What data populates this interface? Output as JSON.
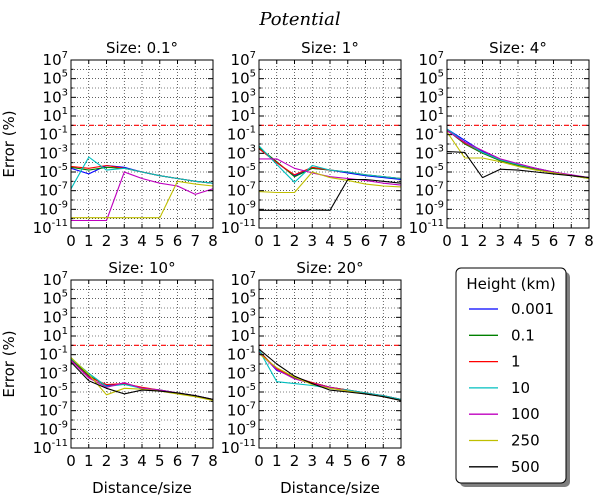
{
  "figure": {
    "title": "Potential"
  },
  "chart_data": [
    {
      "type": "line",
      "title": "Size: 0.1°",
      "xlabel": "",
      "ylabel": "Error (%)",
      "xlim": [
        0,
        8
      ],
      "ylim_exp": [
        -11,
        7
      ],
      "yscale": "log",
      "grid": true,
      "reference_line": {
        "y": 1,
        "style": "dashed",
        "color": "#ff0000"
      },
      "x": [
        0,
        1,
        2,
        3,
        4,
        5,
        6,
        7,
        8
      ],
      "series": [
        {
          "name": "0.001",
          "color": "#0000ff",
          "values_log10": [
            -4.6,
            -5.2,
            -4.3,
            -4.5,
            -5.0,
            -5.4,
            -5.7,
            -6.0,
            -6.2
          ]
        },
        {
          "name": "0.1",
          "color": "#008000",
          "values_log10": [
            -4.5,
            -4.8,
            -4.5,
            -4.6,
            -5.0,
            -5.4,
            -5.7,
            -6.0,
            -6.2
          ]
        },
        {
          "name": "1",
          "color": "#ff0000",
          "values_log10": [
            -4.4,
            -4.6,
            -4.3,
            -4.6,
            -5.0,
            -5.4,
            -5.7,
            -6.0,
            -6.2
          ]
        },
        {
          "name": "10",
          "color": "#00bfbf",
          "values_log10": [
            -6.8,
            -3.4,
            -4.8,
            -4.6,
            -5.0,
            -5.4,
            -5.7,
            -6.0,
            -6.2
          ]
        },
        {
          "name": "100",
          "color": "#bf00bf",
          "values_log10": [
            -10.2,
            -10.2,
            -10.2,
            -5.0,
            -5.7,
            -6.2,
            -6.5,
            -7.4,
            -6.8
          ]
        },
        {
          "name": "250",
          "color": "#bfbf00",
          "values_log10": [
            -9.9,
            -9.9,
            -9.9,
            -9.9,
            -9.9,
            -9.9,
            -6.0,
            -6.3,
            -6.5
          ]
        },
        {
          "name": "500",
          "color": "#000000",
          "values_log10": [
            null,
            null,
            null,
            null,
            null,
            null,
            null,
            null,
            null
          ]
        }
      ]
    },
    {
      "type": "line",
      "title": "Size: 1°",
      "xlabel": "",
      "ylabel": "",
      "xlim": [
        0,
        8
      ],
      "ylim_exp": [
        -11,
        7
      ],
      "yscale": "log",
      "grid": true,
      "reference_line": {
        "y": 1,
        "style": "dashed",
        "color": "#ff0000"
      },
      "x": [
        0,
        1,
        2,
        3,
        4,
        5,
        6,
        7,
        8
      ],
      "series": [
        {
          "name": "0.001",
          "color": "#0000ff",
          "values_log10": [
            -2.5,
            -4.0,
            -5.4,
            -4.6,
            -4.8,
            -5.1,
            -5.4,
            -5.6,
            -5.8
          ]
        },
        {
          "name": "0.1",
          "color": "#008000",
          "values_log10": [
            -2.4,
            -3.9,
            -5.5,
            -4.6,
            -4.8,
            -5.0,
            -5.3,
            -5.5,
            -5.7
          ]
        },
        {
          "name": "1",
          "color": "#ff0000",
          "values_log10": [
            -2.5,
            -4.0,
            -5.3,
            -4.5,
            -4.8,
            -5.0,
            -5.3,
            -5.5,
            -5.7
          ]
        },
        {
          "name": "10",
          "color": "#00bfbf",
          "values_log10": [
            -2.2,
            -4.2,
            -6.1,
            -4.3,
            -4.8,
            -5.0,
            -5.3,
            -5.5,
            -5.7
          ]
        },
        {
          "name": "100",
          "color": "#bf00bf",
          "values_log10": [
            -3.6,
            -3.6,
            -4.6,
            -5.1,
            -5.5,
            -5.7,
            -5.9,
            -6.2,
            -6.4
          ]
        },
        {
          "name": "250",
          "color": "#bfbf00",
          "values_log10": [
            -7.1,
            -7.2,
            -7.2,
            -5.0,
            -5.6,
            -5.9,
            -6.3,
            -6.5,
            -6.6
          ]
        },
        {
          "name": "500",
          "color": "#000000",
          "values_log10": [
            -9.1,
            -9.1,
            -9.1,
            -9.1,
            -9.1,
            -5.8,
            -5.8,
            -6.0,
            -6.2
          ]
        }
      ]
    },
    {
      "type": "line",
      "title": "Size: 4°",
      "xlabel": "",
      "ylabel": "",
      "xlim": [
        0,
        8
      ],
      "ylim_exp": [
        -11,
        7
      ],
      "yscale": "log",
      "grid": true,
      "reference_line": {
        "y": 1,
        "style": "dashed",
        "color": "#ff0000"
      },
      "x": [
        0,
        1,
        2,
        3,
        4,
        5,
        6,
        7,
        8
      ],
      "series": [
        {
          "name": "0.001",
          "color": "#0000ff",
          "values_log10": [
            -0.4,
            -1.6,
            -2.8,
            -3.7,
            -4.2,
            -4.6,
            -5.0,
            -5.4,
            -5.6
          ]
        },
        {
          "name": "0.1",
          "color": "#008000",
          "values_log10": [
            -0.5,
            -2.0,
            -3.0,
            -3.8,
            -4.3,
            -4.7,
            -5.1,
            -5.4,
            -5.7
          ]
        },
        {
          "name": "1",
          "color": "#ff0000",
          "values_log10": [
            -0.5,
            -1.9,
            -2.9,
            -3.7,
            -4.2,
            -4.6,
            -5.0,
            -5.4,
            -5.6
          ]
        },
        {
          "name": "10",
          "color": "#00bfbf",
          "values_log10": [
            -0.4,
            -1.8,
            -2.9,
            -3.7,
            -4.2,
            -4.6,
            -5.0,
            -5.4,
            -5.6
          ]
        },
        {
          "name": "100",
          "color": "#bf00bf",
          "values_log10": [
            -0.6,
            -1.8,
            -2.7,
            -3.6,
            -4.1,
            -4.6,
            -5.0,
            -5.3,
            -5.6
          ]
        },
        {
          "name": "250",
          "color": "#bfbf00",
          "values_log10": [
            -0.7,
            -3.5,
            -3.5,
            -3.9,
            -4.4,
            -4.8,
            -5.1,
            -5.4,
            -5.7
          ]
        },
        {
          "name": "500",
          "color": "#000000",
          "values_log10": [
            -2.8,
            -2.9,
            -5.6,
            -4.7,
            -4.8,
            -5.0,
            -5.2,
            -5.4,
            -5.6
          ]
        }
      ]
    },
    {
      "type": "line",
      "title": "Size: 10°",
      "xlabel": "Distance/size",
      "ylabel": "Error (%)",
      "xlim": [
        0,
        8
      ],
      "ylim_exp": [
        -11,
        7
      ],
      "yscale": "log",
      "grid": true,
      "reference_line": {
        "y": 1,
        "style": "dashed",
        "color": "#ff0000"
      },
      "x": [
        0,
        1,
        2,
        3,
        4,
        5,
        6,
        7,
        8
      ],
      "series": [
        {
          "name": "0.001",
          "color": "#0000ff",
          "values_log10": [
            -1.6,
            -3.3,
            -4.3,
            -4.1,
            -4.6,
            -4.8,
            -5.1,
            -5.4,
            -5.8
          ]
        },
        {
          "name": "0.1",
          "color": "#008000",
          "values_log10": [
            -1.5,
            -3.2,
            -4.4,
            -4.1,
            -4.6,
            -4.8,
            -5.1,
            -5.4,
            -5.8
          ]
        },
        {
          "name": "1",
          "color": "#ff0000",
          "values_log10": [
            -1.6,
            -3.4,
            -4.2,
            -4.1,
            -4.5,
            -4.8,
            -5.1,
            -5.4,
            -5.8
          ]
        },
        {
          "name": "10",
          "color": "#00bfbf",
          "values_log10": [
            -1.4,
            -3.0,
            -4.4,
            -4.2,
            -4.6,
            -4.8,
            -5.1,
            -5.4,
            -5.8
          ]
        },
        {
          "name": "100",
          "color": "#bf00bf",
          "values_log10": [
            -1.6,
            -3.5,
            -4.5,
            -4.0,
            -4.6,
            -4.8,
            -5.1,
            -5.4,
            -5.8
          ]
        },
        {
          "name": "250",
          "color": "#bfbf00",
          "values_log10": [
            -1.3,
            -3.1,
            -5.3,
            -4.6,
            -4.7,
            -4.9,
            -5.2,
            -5.5,
            -5.9
          ]
        },
        {
          "name": "500",
          "color": "#000000",
          "values_log10": [
            -1.8,
            -3.8,
            -4.6,
            -5.2,
            -4.8,
            -4.9,
            -5.1,
            -5.4,
            -5.8
          ]
        }
      ]
    },
    {
      "type": "line",
      "title": "Size: 20°",
      "xlabel": "Distance/size",
      "ylabel": "",
      "xlim": [
        0,
        8
      ],
      "ylim_exp": [
        -11,
        7
      ],
      "yscale": "log",
      "grid": true,
      "reference_line": {
        "y": 1,
        "style": "dashed",
        "color": "#ff0000"
      },
      "x": [
        0,
        1,
        2,
        3,
        4,
        5,
        6,
        7,
        8
      ],
      "series": [
        {
          "name": "0.001",
          "color": "#0000ff",
          "values_log10": [
            -0.6,
            -2.7,
            -3.4,
            -4.0,
            -4.5,
            -4.8,
            -5.1,
            -5.4,
            -5.8
          ]
        },
        {
          "name": "0.1",
          "color": "#008000",
          "values_log10": [
            -0.6,
            -2.6,
            -3.5,
            -4.0,
            -4.5,
            -4.8,
            -5.1,
            -5.4,
            -5.8
          ]
        },
        {
          "name": "1",
          "color": "#ff0000",
          "values_log10": [
            -0.7,
            -2.5,
            -3.4,
            -4.0,
            -4.5,
            -4.8,
            -5.1,
            -5.4,
            -5.8
          ]
        },
        {
          "name": "10",
          "color": "#00bfbf",
          "values_log10": [
            -0.5,
            -3.9,
            -4.1,
            -4.3,
            -4.6,
            -4.8,
            -5.1,
            -5.4,
            -5.8
          ]
        },
        {
          "name": "100",
          "color": "#bf00bf",
          "values_log10": [
            -0.8,
            -2.6,
            -3.6,
            -4.1,
            -4.5,
            -4.9,
            -5.2,
            -5.5,
            -5.9
          ]
        },
        {
          "name": "250",
          "color": "#bfbf00",
          "values_log10": [
            -0.9,
            -2.4,
            -3.4,
            -4.2,
            -4.6,
            -4.9,
            -5.2,
            -5.5,
            -5.9
          ]
        },
        {
          "name": "500",
          "color": "#000000",
          "values_log10": [
            -0.4,
            -2.0,
            -3.3,
            -4.1,
            -4.8,
            -5.0,
            -5.2,
            -5.5,
            -5.9
          ]
        }
      ]
    }
  ],
  "legend": {
    "title": "Height (km)",
    "placement": "bottom-right",
    "entries": [
      {
        "label": "0.001",
        "color": "#0000ff"
      },
      {
        "label": "0.1",
        "color": "#008000"
      },
      {
        "label": "1",
        "color": "#ff0000"
      },
      {
        "label": "10",
        "color": "#00bfbf"
      },
      {
        "label": "100",
        "color": "#bf00bf"
      },
      {
        "label": "250",
        "color": "#bfbf00"
      },
      {
        "label": "500",
        "color": "#000000"
      }
    ]
  }
}
